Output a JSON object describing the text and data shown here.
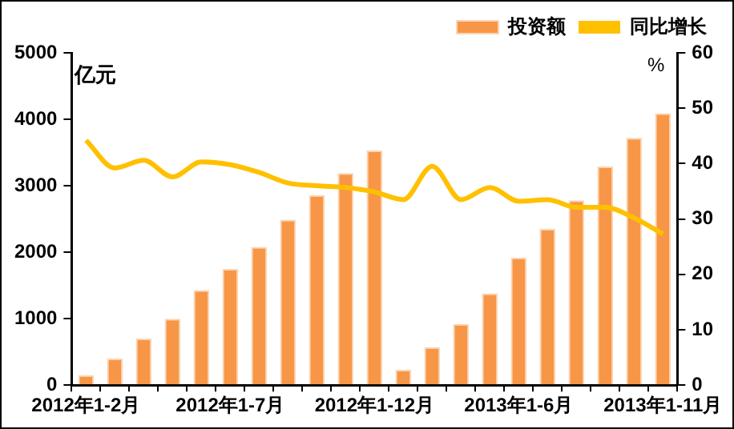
{
  "chart_data": {
    "type": "bar",
    "ylabel": "亿元",
    "y2label": "%",
    "categories": [
      "2012年1-2月",
      null,
      null,
      null,
      null,
      "2012年1-7月",
      null,
      null,
      null,
      null,
      "2012年1-12月",
      null,
      null,
      null,
      null,
      "2013年1-6月",
      null,
      null,
      null,
      null,
      "2013年1-11月"
    ],
    "series": [
      {
        "name": "投资额",
        "color": "#f79646",
        "values": [
          150,
          400,
          700,
          1000,
          1430,
          1750,
          2080,
          2490,
          2860,
          3190,
          3530,
          230,
          570,
          920,
          1380,
          1920,
          2350,
          2780,
          3290,
          3720,
          4090
        ]
      },
      {
        "name": "同比增长",
        "type": "line",
        "axis": "y2",
        "color": "#ffc000",
        "values": [
          44.2,
          39.2,
          40.6,
          37.6,
          40.3,
          39.8,
          38.4,
          36.5,
          36,
          35.7,
          34.9,
          33.5,
          39.5,
          33.5,
          35.7,
          33.2,
          33.5,
          32.1,
          32.1,
          30.2,
          27.3
        ]
      }
    ],
    "ylim": [
      0,
      5000
    ],
    "yticks": [
      0,
      1000,
      2000,
      3000,
      4000,
      5000
    ],
    "y2lim": [
      0,
      60
    ],
    "y2ticks": [
      0,
      10,
      20,
      30,
      40,
      50,
      60
    ],
    "grid": false,
    "legend": "top right",
    "marker": "none"
  }
}
